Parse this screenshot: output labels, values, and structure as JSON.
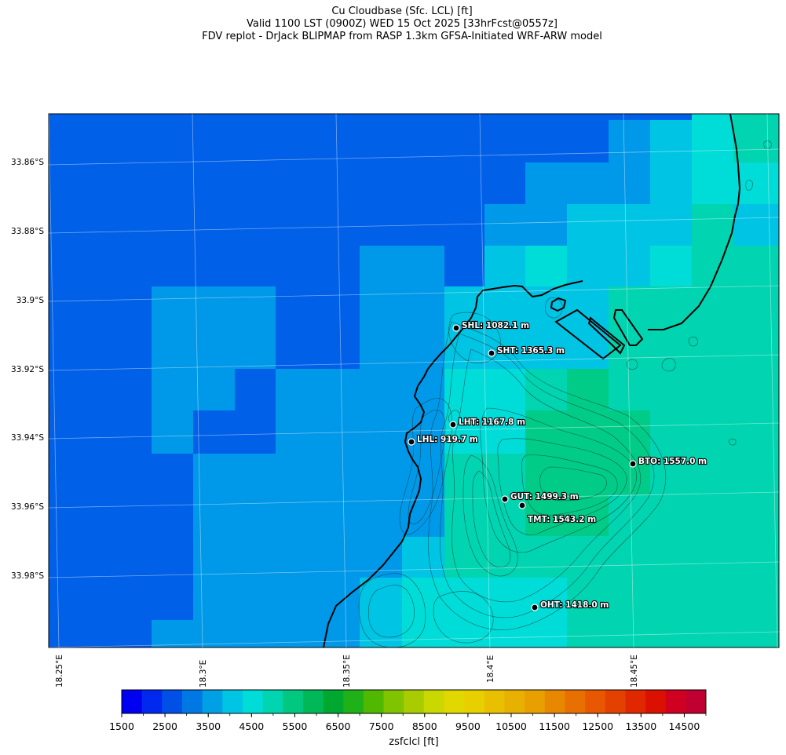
{
  "title": {
    "line1": "Cu Cloudbase (Sfc. LCL) [ft]",
    "line2": "Valid 1100 LST (0900Z) WED 15 Oct 2025 [33hrFcst@0557z]",
    "line3": "FDV replot - DrJack BLIPMAP from RASP 1.3km GFSA-Initiated WRF-ARW model"
  },
  "lat_labels": [
    "33.86°S",
    "33.88°S",
    "33.9°S",
    "33.92°S",
    "33.94°S",
    "33.96°S",
    "33.98°S"
  ],
  "lon_labels": [
    "18.25°E",
    "18.3°E",
    "18.35°E",
    "18.4°E",
    "18.45°E"
  ],
  "stations": [
    {
      "code": "SHL",
      "label": "SHL: 1082.1 m"
    },
    {
      "code": "SHT",
      "label": "SHT: 1365.3 m"
    },
    {
      "code": "LHT",
      "label": "LHT: 1167.8 m"
    },
    {
      "code": "LHL",
      "label": "LHL: 919.7 m"
    },
    {
      "code": "BTO",
      "label": "BTO: 1557.0 m"
    },
    {
      "code": "GUT",
      "label": "GUT: 1499.3 m"
    },
    {
      "code": "TMT",
      "label": "TMT: 1543.2 m"
    },
    {
      "code": "OHT",
      "label": "OHT: 1418.0 m"
    }
  ],
  "colorbar": {
    "label": "zsfclcl [ft]",
    "min": 1500,
    "max": 15000,
    "step": 500,
    "tick_labels": [
      "1500",
      "2500",
      "3500",
      "4500",
      "5500",
      "6500",
      "7500",
      "8500",
      "9500",
      "10500",
      "11500",
      "12500",
      "13500",
      "14500"
    ],
    "colors": [
      "#0000f0",
      "#0028ee",
      "#0050e8",
      "#0078e4",
      "#00a0e4",
      "#00c4e4",
      "#00dcd8",
      "#00d4b0",
      "#00c880",
      "#00b858",
      "#00a830",
      "#20b018",
      "#50b800",
      "#80c400",
      "#a8cc00",
      "#c8d800",
      "#e0d800",
      "#e8d000",
      "#e8c000",
      "#e8b000",
      "#e8a000",
      "#e88800",
      "#e87000",
      "#e85800",
      "#e44000",
      "#e02800",
      "#dc1000",
      "#d00020",
      "#c00030"
    ]
  },
  "field_colors": {
    "c2500": "#0060e8",
    "c3000": "#0068e8",
    "c3500": "#0098e8",
    "c4000": "#00c4e4",
    "c4500": "#00dcd8",
    "c5000": "#00d4b0",
    "c5500": "#00cc88"
  },
  "coastline_color": "#000000",
  "contour_color": "#1a3a3a"
}
